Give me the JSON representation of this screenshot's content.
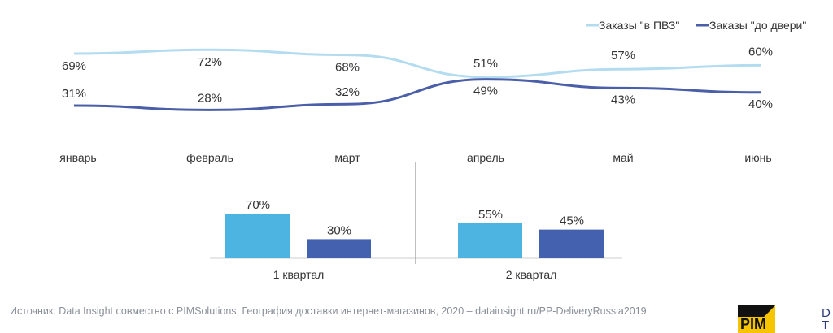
{
  "chart_data": [
    {
      "type": "line",
      "categories": [
        "январь",
        "февраль",
        "март",
        "апрель",
        "май",
        "июнь"
      ],
      "series": [
        {
          "name": "Заказы \"в ПВЗ\"",
          "values": [
            69,
            72,
            68,
            51,
            57,
            60
          ],
          "color": "#b4dcf0"
        },
        {
          "name": "Заказы \"до двери\"",
          "values": [
            31,
            28,
            32,
            49,
            43,
            40
          ],
          "color": "#4a5fa8"
        }
      ],
      "unit": "%",
      "legend": "top-right"
    },
    {
      "type": "bar",
      "categories": [
        "1 квартал",
        "2 квартал"
      ],
      "series": [
        {
          "name": "Заказы \"в ПВЗ\"",
          "values": [
            70,
            55
          ],
          "color": "#4db3e0"
        },
        {
          "name": "Заказы \"до двери\"",
          "values": [
            30,
            45
          ],
          "color": "#4361ae"
        }
      ],
      "unit": "%"
    }
  ],
  "source": "Источник: Data Insight совместно с PIMSolutions, География доставки интернет-магазинов, 2020 – datainsight.ru/PP-DeliveryRussia2019",
  "logos": {
    "pim": "PIM",
    "dt": "D T"
  }
}
